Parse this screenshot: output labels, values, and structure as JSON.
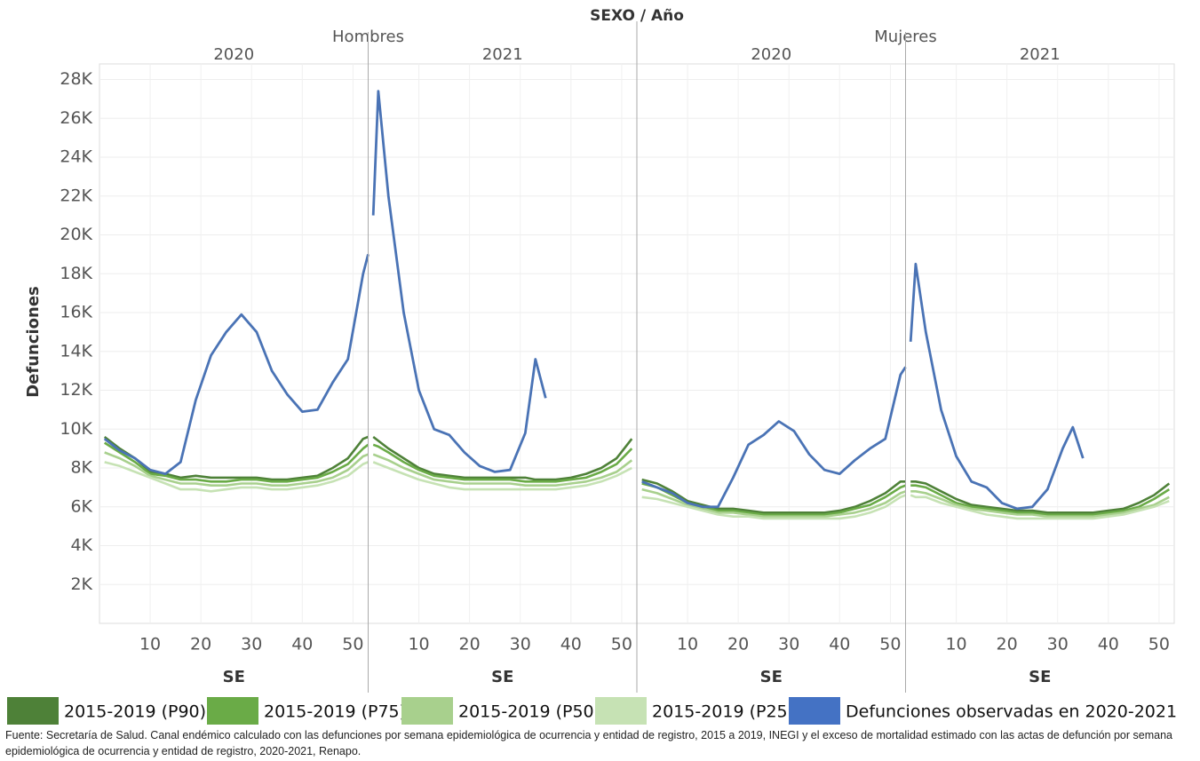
{
  "chart_data": {
    "type": "line",
    "title": "SEXO / Año",
    "ylabel": "Defunciones",
    "xlabel": "SE",
    "ylim": [
      0,
      28800
    ],
    "yticks": [
      {
        "value": 2000,
        "label": "2K"
      },
      {
        "value": 4000,
        "label": "4K"
      },
      {
        "value": 6000,
        "label": "6K"
      },
      {
        "value": 8000,
        "label": "8K"
      },
      {
        "value": 10000,
        "label": "10K"
      },
      {
        "value": 12000,
        "label": "12K"
      },
      {
        "value": 14000,
        "label": "14K"
      },
      {
        "value": 16000,
        "label": "16K"
      },
      {
        "value": 18000,
        "label": "18K"
      },
      {
        "value": 20000,
        "label": "20K"
      },
      {
        "value": 22000,
        "label": "22K"
      },
      {
        "value": 24000,
        "label": "24K"
      },
      {
        "value": 26000,
        "label": "26K"
      },
      {
        "value": 28000,
        "label": "28K"
      }
    ],
    "xlim": [
      0,
      53
    ],
    "xticks": [
      10,
      20,
      30,
      40,
      50
    ],
    "grid": true,
    "series": [
      {
        "name": "2015-2019 (P90)",
        "color": "#4e8138"
      },
      {
        "name": "2015-2019 (P75)",
        "color": "#6aab47"
      },
      {
        "name": "2015-2019 (P50)",
        "color": "#a8d08d"
      },
      {
        "name": "2015-2019 (P25)",
        "color": "#c6e2b4"
      },
      {
        "name": "Defunciones observadas en 2020-2021",
        "color": "#4a73b5"
      }
    ],
    "groups": [
      {
        "name": "Hombres",
        "panels": [
          {
            "year": "2020",
            "x": [
              1,
              4,
              7,
              10,
              13,
              16,
              19,
              22,
              25,
              28,
              31,
              34,
              37,
              40,
              43,
              46,
              49,
              52,
              53
            ],
            "values": [
              [
                9600,
                9000,
                8500,
                7800,
                7700,
                7500,
                7600,
                7500,
                7500,
                7500,
                7500,
                7400,
                7400,
                7500,
                7600,
                8000,
                8500,
                9500,
                9600
              ],
              [
                9300,
                8800,
                8300,
                7700,
                7600,
                7400,
                7400,
                7300,
                7300,
                7400,
                7400,
                7300,
                7300,
                7400,
                7500,
                7800,
                8200,
                9000,
                9200
              ],
              [
                8800,
                8500,
                8100,
                7600,
                7400,
                7200,
                7200,
                7100,
                7100,
                7200,
                7200,
                7100,
                7100,
                7200,
                7300,
                7500,
                7900,
                8600,
                8700
              ],
              [
                8300,
                8100,
                7800,
                7500,
                7200,
                6900,
                6900,
                6800,
                6900,
                7000,
                7000,
                6900,
                6900,
                7000,
                7100,
                7300,
                7600,
                8200,
                8300
              ],
              [
                9500,
                8900,
                8500,
                7900,
                7700,
                8300,
                11500,
                13800,
                15000,
                15900,
                15000,
                13000,
                11800,
                10900,
                11000,
                12400,
                13600,
                18000,
                19000
              ]
            ]
          },
          {
            "year": "2021",
            "x": [
              1,
              2,
              4,
              7,
              10,
              13,
              16,
              19,
              22,
              25,
              28,
              31,
              33,
              35,
              37,
              40,
              43,
              46,
              49,
              52
            ],
            "values": [
              [
                9600,
                9400,
                9000,
                8500,
                8000,
                7700,
                7600,
                7500,
                7500,
                7500,
                7500,
                7500,
                7400,
                7400,
                7400,
                7500,
                7700,
                8000,
                8500,
                9500
              ],
              [
                9200,
                9100,
                8800,
                8300,
                7900,
                7600,
                7500,
                7400,
                7400,
                7400,
                7400,
                7300,
                7300,
                7300,
                7300,
                7400,
                7500,
                7800,
                8200,
                9000
              ],
              [
                8700,
                8600,
                8400,
                8000,
                7700,
                7400,
                7300,
                7200,
                7200,
                7200,
                7200,
                7100,
                7100,
                7100,
                7100,
                7200,
                7300,
                7500,
                7800,
                8400
              ],
              [
                8300,
                8200,
                8000,
                7700,
                7400,
                7200,
                7000,
                6900,
                6900,
                6900,
                6900,
                6900,
                6900,
                6900,
                6900,
                7000,
                7100,
                7300,
                7600,
                8000
              ],
              [
                21000,
                27400,
                22000,
                16000,
                12000,
                10000,
                9700,
                8800,
                8100,
                7800,
                7900,
                9800,
                13600,
                11600,
                null,
                null,
                null,
                null,
                null,
                null
              ]
            ]
          }
        ]
      },
      {
        "name": "Mujeres",
        "panels": [
          {
            "year": "2020",
            "x": [
              1,
              4,
              7,
              10,
              13,
              16,
              19,
              22,
              25,
              28,
              31,
              34,
              37,
              40,
              43,
              46,
              49,
              52,
              53
            ],
            "values": [
              [
                7400,
                7200,
                6800,
                6300,
                6100,
                5900,
                5900,
                5800,
                5700,
                5700,
                5700,
                5700,
                5700,
                5800,
                6000,
                6300,
                6700,
                7300,
                7300
              ],
              [
                7200,
                7000,
                6600,
                6200,
                6000,
                5800,
                5800,
                5700,
                5600,
                5600,
                5600,
                5600,
                5600,
                5700,
                5900,
                6100,
                6500,
                7000,
                7100
              ],
              [
                6900,
                6700,
                6400,
                6100,
                5900,
                5700,
                5700,
                5600,
                5500,
                5500,
                5500,
                5500,
                5500,
                5600,
                5700,
                5900,
                6200,
                6700,
                6800
              ],
              [
                6500,
                6400,
                6200,
                6000,
                5800,
                5600,
                5500,
                5500,
                5400,
                5400,
                5400,
                5400,
                5400,
                5400,
                5500,
                5700,
                6000,
                6500,
                6600
              ],
              [
                7300,
                7000,
                6700,
                6200,
                6000,
                6000,
                7500,
                9200,
                9700,
                10400,
                9900,
                8700,
                7900,
                7700,
                8400,
                9000,
                9500,
                12800,
                13200
              ]
            ]
          },
          {
            "year": "2021",
            "x": [
              1,
              2,
              4,
              7,
              10,
              13,
              16,
              19,
              22,
              25,
              28,
              31,
              33,
              35,
              37,
              40,
              43,
              46,
              49,
              52
            ],
            "values": [
              [
                7300,
                7300,
                7200,
                6800,
                6400,
                6100,
                6000,
                5900,
                5800,
                5800,
                5700,
                5700,
                5700,
                5700,
                5700,
                5800,
                5900,
                6200,
                6600,
                7200
              ],
              [
                7100,
                7100,
                7000,
                6600,
                6200,
                6000,
                5900,
                5800,
                5700,
                5700,
                5600,
                5600,
                5600,
                5600,
                5600,
                5700,
                5800,
                6000,
                6400,
                6900
              ],
              [
                6800,
                6800,
                6700,
                6400,
                6100,
                5900,
                5800,
                5700,
                5600,
                5600,
                5500,
                5500,
                5500,
                5500,
                5500,
                5600,
                5700,
                5900,
                6100,
                6500
              ],
              [
                6600,
                6500,
                6500,
                6200,
                6000,
                5800,
                5600,
                5500,
                5400,
                5400,
                5400,
                5400,
                5400,
                5400,
                5400,
                5500,
                5600,
                5800,
                6000,
                6300
              ],
              [
                14500,
                18500,
                15000,
                11000,
                8600,
                7300,
                7000,
                6200,
                5900,
                6000,
                6900,
                9000,
                10100,
                8500,
                null,
                null,
                null,
                null,
                null,
                null
              ]
            ]
          }
        ]
      }
    ],
    "source": "Fuente: Secretaría de Salud. Canal endémico calculado con las defunciones por semana epidemiológica de ocurrencia y entidad de registro, 2015 a 2019, INEGI y el exceso de mortalidad estimado con las actas de defunción por semana epidemiológica de ocurrencia y entidad de registro, 2020-2021, Renapo."
  }
}
